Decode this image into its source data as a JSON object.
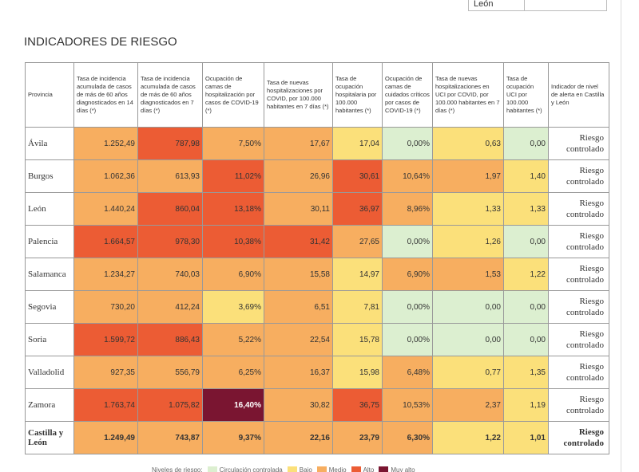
{
  "top_fragment": {
    "cell": "León"
  },
  "heading": "INDICADORES DE RIESGO",
  "table": {
    "header": [
      "Provincia",
      "Tasa de incidencia acumulada de casos de más de 60 años diagnosticados en 14 días (*)",
      "Tasa de incidencia acumulada de casos de más de 60 años diagnosticados en 7 días (*)",
      "Ocupación de camas de hospitalización por casos de COVID-19 (*)",
      "Tasa de nuevas hospitalizaciones por COVID, por 100.000 habitantes en 7 días (*)",
      "Tasa de ocupación hospitalaria por 100.000 habitantes (*)",
      "Ocupación de camas de cuidados críticos por casos de COVID-19 (*)",
      "Tasa de nuevas hospitalizaciones en UCI por COVID, por 100.000 habitantes en 7 días (*)",
      "Tasa de ocupación UCI por 100.000 habitantes (*)",
      "Indicador de nivel de alerta en Castilla y León"
    ],
    "rows": [
      {
        "cells": [
          "Ávila",
          "1.252,49",
          "787,98",
          "7,50%",
          "17,67",
          "17,04",
          "0,00%",
          "0,63",
          "0,00",
          "Riesgo controlado"
        ],
        "colors": [
          "#f7ae60",
          "#ec5c34",
          "#f7ae60",
          "#f7ae60",
          "#fbe07a",
          "#dcefd0",
          "#fbe07a",
          "#dcefd0"
        ]
      },
      {
        "cells": [
          "Burgos",
          "1.062,36",
          "613,93",
          "11,02%",
          "26,96",
          "30,61",
          "10,64%",
          "1,97",
          "1,40",
          "Riesgo controlado"
        ],
        "colors": [
          "#f7ae60",
          "#f7ae60",
          "#ec5c34",
          "#f7ae60",
          "#ec5c34",
          "#f7ae60",
          "#f7ae60",
          "#fbe07a"
        ]
      },
      {
        "cells": [
          "León",
          "1.440,24",
          "860,04",
          "13,18%",
          "30,11",
          "36,97",
          "8,96%",
          "1,33",
          "1,33",
          "Riesgo controlado"
        ],
        "colors": [
          "#f7ae60",
          "#ec5c34",
          "#ec5c34",
          "#f7ae60",
          "#ec5c34",
          "#f7ae60",
          "#fbe07a",
          "#fbe07a"
        ]
      },
      {
        "cells": [
          "Palencia",
          "1.664,57",
          "978,30",
          "10,38%",
          "31,42",
          "27,65",
          "0,00%",
          "1,26",
          "0,00",
          "Riesgo controlado"
        ],
        "colors": [
          "#ec5c34",
          "#ec5c34",
          "#ec5c34",
          "#ec5c34",
          "#f7ae60",
          "#dcefd0",
          "#fbe07a",
          "#dcefd0"
        ]
      },
      {
        "cells": [
          "Salamanca",
          "1.234,27",
          "740,03",
          "6,90%",
          "15,58",
          "14,97",
          "6,90%",
          "1,53",
          "1,22",
          "Riesgo controlado"
        ],
        "colors": [
          "#f7ae60",
          "#f7ae60",
          "#f7ae60",
          "#f7ae60",
          "#fbe07a",
          "#f7ae60",
          "#f7ae60",
          "#fbe07a"
        ]
      },
      {
        "cells": [
          "Segovia",
          "730,20",
          "412,24",
          "3,69%",
          "6,51",
          "7,81",
          "0,00%",
          "0,00",
          "0,00",
          "Riesgo controlado"
        ],
        "colors": [
          "#f7ae60",
          "#f7ae60",
          "#fbe07a",
          "#f7ae60",
          "#fbe07a",
          "#dcefd0",
          "#dcefd0",
          "#dcefd0"
        ]
      },
      {
        "cells": [
          "Soria",
          "1.599,72",
          "886,43",
          "5,22%",
          "22,54",
          "15,78",
          "0,00%",
          "0,00",
          "0,00",
          "Riesgo controlado"
        ],
        "colors": [
          "#ec5c34",
          "#ec5c34",
          "#f7ae60",
          "#f7ae60",
          "#fbe07a",
          "#dcefd0",
          "#dcefd0",
          "#dcefd0"
        ]
      },
      {
        "cells": [
          "Valladolid",
          "927,35",
          "556,79",
          "6,25%",
          "16,37",
          "15,98",
          "6,48%",
          "0,77",
          "1,35",
          "Riesgo controlado"
        ],
        "colors": [
          "#f7ae60",
          "#f7ae60",
          "#f7ae60",
          "#f7ae60",
          "#fbe07a",
          "#f7ae60",
          "#fbe07a",
          "#fbe07a"
        ]
      },
      {
        "cells": [
          "Zamora",
          "1.763,74",
          "1.075,82",
          "16,40%",
          "30,82",
          "36,75",
          "10,53%",
          "2,37",
          "1,19",
          "Riesgo controlado"
        ],
        "colors": [
          "#ec5c34",
          "#ec5c34",
          "#7a1531",
          "#f7ae60",
          "#ec5c34",
          "#f7ae60",
          "#f7ae60",
          "#fbe07a"
        ]
      }
    ],
    "total_row": {
      "cells": [
        "Castilla y León",
        "1.249,49",
        "743,87",
        "9,37%",
        "22,16",
        "23,79",
        "6,30%",
        "1,22",
        "1,01",
        "Riesgo controlado"
      ],
      "colors": [
        "#f7ae60",
        "#f7ae60",
        "#f7ae60",
        "#f7ae60",
        "#f7ae60",
        "#f7ae60",
        "#fbe07a",
        "#fbe07a"
      ]
    }
  },
  "legend": {
    "title": "Niveles de riesgo:",
    "items": [
      {
        "label": "Circulación controlada",
        "color": "#dcefd0"
      },
      {
        "label": "Bajo",
        "color": "#fbe07a"
      },
      {
        "label": "Medio",
        "color": "#f7ae60"
      },
      {
        "label": "Alto",
        "color": "#ec5c34"
      },
      {
        "label": "Muy alto",
        "color": "#7a1531"
      }
    ]
  }
}
